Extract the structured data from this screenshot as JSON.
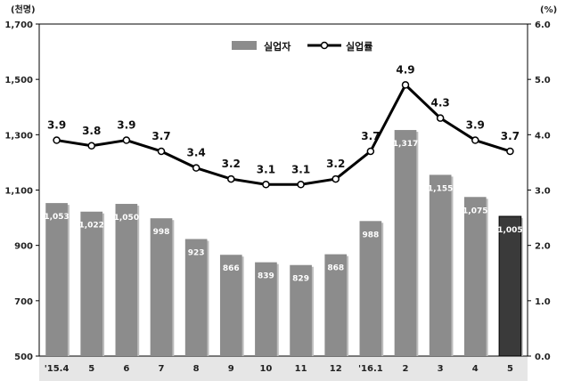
{
  "chart_data": {
    "type": "bar",
    "categories": [
      "'15.4",
      "5",
      "6",
      "7",
      "8",
      "9",
      "10",
      "11",
      "12",
      "'16.1",
      "2",
      "3",
      "4",
      "5"
    ],
    "series": [
      {
        "name": "실업자",
        "type": "bar",
        "axis": "left",
        "values": [
          1053,
          1022,
          1050,
          998,
          923,
          866,
          839,
          829,
          868,
          988,
          1317,
          1155,
          1075,
          1005
        ],
        "labels": [
          "1,053",
          "1,022",
          "1,050",
          "998",
          "923",
          "866",
          "839",
          "829",
          "868",
          "988",
          "1,317",
          "1,155",
          "1,075",
          "1,005"
        ],
        "color": "#8c8c8c",
        "highlight_color": "#3a3a3a",
        "highlight_index": 13
      },
      {
        "name": "실업률",
        "type": "line",
        "axis": "right",
        "values": [
          3.9,
          3.8,
          3.9,
          3.7,
          3.4,
          3.2,
          3.1,
          3.1,
          3.2,
          3.7,
          4.9,
          4.3,
          3.9,
          3.7
        ],
        "labels": [
          "3.9",
          "3.8",
          "3.9",
          "3.7",
          "3.4",
          "3.2",
          "3.1",
          "3.1",
          "3.2",
          "3.7",
          "4.9",
          "4.3",
          "3.9",
          "3.7"
        ],
        "color": "#000000"
      }
    ],
    "y_left": {
      "unit": "(천명)",
      "ylim": [
        500,
        1700
      ],
      "ticks": [
        500,
        700,
        900,
        1100,
        1300,
        1500,
        1700
      ],
      "tick_labels": [
        "500",
        "700",
        "900",
        "1,100",
        "1,300",
        "1,500",
        "1,700"
      ]
    },
    "y_right": {
      "unit": "(%)",
      "ylim": [
        0,
        6
      ],
      "ticks": [
        0,
        1,
        2,
        3,
        4,
        5,
        6
      ],
      "tick_labels": [
        "0.0",
        "1.0",
        "2.0",
        "3.0",
        "4.0",
        "5.0",
        "6.0"
      ]
    },
    "grid": false,
    "legend": "top-center"
  }
}
